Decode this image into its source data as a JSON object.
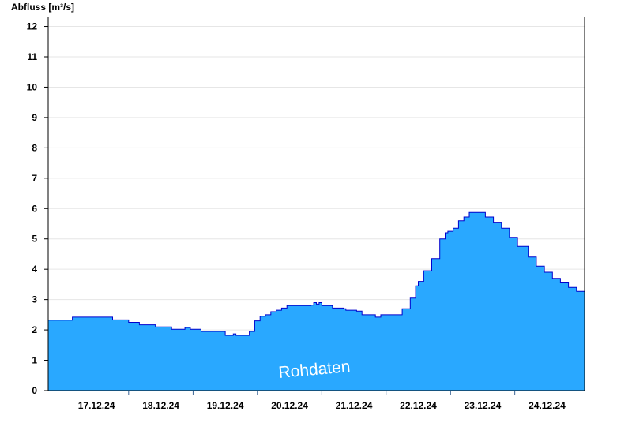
{
  "chart_data": {
    "type": "area",
    "ylabel": "Abfluss [m³/s]",
    "ylim": [
      0,
      12.3
    ],
    "yticks": [
      0,
      1,
      2,
      3,
      4,
      5,
      6,
      7,
      8,
      9,
      10,
      11,
      12
    ],
    "xlim": [
      "2024-12-16T12:00",
      "2024-12-24T20:00"
    ],
    "x_tick_labels": [
      {
        "label": "17.12.24",
        "x": "2024-12-17T06:00"
      },
      {
        "label": "18.12.24",
        "x": "2024-12-18T06:00"
      },
      {
        "label": "19.12.24",
        "x": "2024-12-19T06:00"
      },
      {
        "label": "20.12.24",
        "x": "2024-12-20T06:00"
      },
      {
        "label": "21.12.24",
        "x": "2024-12-21T06:00"
      },
      {
        "label": "22.12.24",
        "x": "2024-12-22T06:00"
      },
      {
        "label": "23.12.24",
        "x": "2024-12-23T06:00"
      },
      {
        "label": "24.12.24",
        "x": "2024-12-24T06:00"
      }
    ],
    "day_dividers": [
      "2024-12-17T18:00",
      "2024-12-18T18:00",
      "2024-12-19T18:00",
      "2024-12-20T18:00",
      "2024-12-21T18:00",
      "2024-12-22T18:00",
      "2024-12-23T18:00"
    ],
    "grid": true,
    "annotation": "Rohdaten",
    "colors": {
      "fill": "#29a8ff",
      "line": "#0000cc",
      "grid": "#e6e6e6",
      "axis": "#000000"
    },
    "series": [
      {
        "points": [
          [
            "2024-12-16T12:00",
            2.32
          ],
          [
            "2024-12-16T19:00",
            2.32
          ],
          [
            "2024-12-16T21:00",
            2.42
          ],
          [
            "2024-12-17T10:00",
            2.42
          ],
          [
            "2024-12-17T12:00",
            2.33
          ],
          [
            "2024-12-17T17:00",
            2.33
          ],
          [
            "2024-12-17T18:00",
            2.25
          ],
          [
            "2024-12-17T21:00",
            2.25
          ],
          [
            "2024-12-17T22:00",
            2.17
          ],
          [
            "2024-12-18T03:00",
            2.17
          ],
          [
            "2024-12-18T04:00",
            2.1
          ],
          [
            "2024-12-18T09:00",
            2.1
          ],
          [
            "2024-12-18T10:00",
            2.02
          ],
          [
            "2024-12-18T14:00",
            2.02
          ],
          [
            "2024-12-18T15:00",
            2.08
          ],
          [
            "2024-12-18T16:00",
            2.08
          ],
          [
            "2024-12-18T17:00",
            2.02
          ],
          [
            "2024-12-18T20:00",
            2.02
          ],
          [
            "2024-12-18T21:00",
            1.95
          ],
          [
            "2024-12-19T04:00",
            1.95
          ],
          [
            "2024-12-19T06:00",
            1.82
          ],
          [
            "2024-12-19T08:00",
            1.82
          ],
          [
            "2024-12-19T09:00",
            1.87
          ],
          [
            "2024-12-19T10:00",
            1.82
          ],
          [
            "2024-12-19T13:00",
            1.82
          ],
          [
            "2024-12-19T15:00",
            1.95
          ],
          [
            "2024-12-19T17:00",
            2.3
          ],
          [
            "2024-12-19T19:00",
            2.45
          ],
          [
            "2024-12-19T21:00",
            2.5
          ],
          [
            "2024-12-19T23:00",
            2.6
          ],
          [
            "2024-12-20T01:00",
            2.65
          ],
          [
            "2024-12-20T03:00",
            2.72
          ],
          [
            "2024-12-20T05:00",
            2.8
          ],
          [
            "2024-12-20T12:00",
            2.8
          ],
          [
            "2024-12-20T14:00",
            2.82
          ],
          [
            "2024-12-20T15:00",
            2.9
          ],
          [
            "2024-12-20T16:00",
            2.85
          ],
          [
            "2024-12-20T17:00",
            2.9
          ],
          [
            "2024-12-20T18:00",
            2.8
          ],
          [
            "2024-12-20T21:00",
            2.8
          ],
          [
            "2024-12-20T22:00",
            2.72
          ],
          [
            "2024-12-21T02:00",
            2.7
          ],
          [
            "2024-12-21T03:00",
            2.65
          ],
          [
            "2024-12-21T07:00",
            2.62
          ],
          [
            "2024-12-21T09:00",
            2.5
          ],
          [
            "2024-12-21T13:00",
            2.5
          ],
          [
            "2024-12-21T14:00",
            2.42
          ],
          [
            "2024-12-21T15:00",
            2.42
          ],
          [
            "2024-12-21T16:00",
            2.5
          ],
          [
            "2024-12-21T21:00",
            2.5
          ],
          [
            "2024-12-22T00:00",
            2.7
          ],
          [
            "2024-12-22T03:00",
            3.05
          ],
          [
            "2024-12-22T05:00",
            3.45
          ],
          [
            "2024-12-22T06:00",
            3.6
          ],
          [
            "2024-12-22T08:00",
            3.95
          ],
          [
            "2024-12-22T11:00",
            4.35
          ],
          [
            "2024-12-22T14:00",
            5.0
          ],
          [
            "2024-12-22T16:00",
            5.2
          ],
          [
            "2024-12-22T17:00",
            5.25
          ],
          [
            "2024-12-22T19:00",
            5.35
          ],
          [
            "2024-12-22T21:00",
            5.6
          ],
          [
            "2024-12-22T23:00",
            5.72
          ],
          [
            "2024-12-23T01:00",
            5.87
          ],
          [
            "2024-12-23T05:00",
            5.87
          ],
          [
            "2024-12-23T07:00",
            5.72
          ],
          [
            "2024-12-23T10:00",
            5.55
          ],
          [
            "2024-12-23T13:00",
            5.35
          ],
          [
            "2024-12-23T16:00",
            5.05
          ],
          [
            "2024-12-23T19:00",
            4.75
          ],
          [
            "2024-12-23T23:00",
            4.4
          ],
          [
            "2024-12-24T02:00",
            4.1
          ],
          [
            "2024-12-24T05:00",
            3.9
          ],
          [
            "2024-12-24T08:00",
            3.7
          ],
          [
            "2024-12-24T11:00",
            3.55
          ],
          [
            "2024-12-24T14:00",
            3.4
          ],
          [
            "2024-12-24T17:00",
            3.27
          ],
          [
            "2024-12-24T20:00",
            3.15
          ]
        ]
      }
    ]
  }
}
